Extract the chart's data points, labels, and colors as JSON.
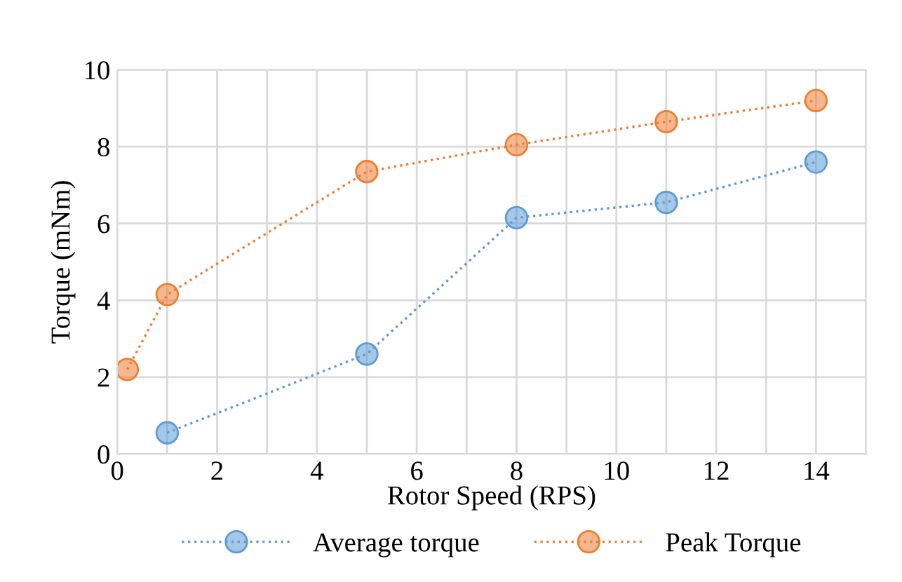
{
  "chart_data": {
    "type": "line",
    "xlabel": "Rotor Speed (RPS)",
    "ylabel": "Torque (mNm)",
    "xlim": [
      0,
      15
    ],
    "ylim": [
      0,
      10
    ],
    "xticks": [
      0,
      {
        "value": 1,
        "label": null
      },
      2,
      {
        "value": 3,
        "label": null
      },
      4,
      {
        "value": 5,
        "label": null
      },
      6,
      {
        "value": 7,
        "label": null
      },
      8,
      {
        "value": 9,
        "label": null
      },
      10,
      {
        "value": 11,
        "label": null
      },
      12,
      {
        "value": 13,
        "label": null
      },
      14,
      {
        "value": 15,
        "label": null
      }
    ],
    "yticks": [
      0,
      2,
      4,
      6,
      8,
      10
    ],
    "series": [
      {
        "name": "Average torque",
        "color": "#5b9bd5",
        "x": [
          1,
          5,
          8,
          11,
          14
        ],
        "values": [
          0.55,
          2.6,
          6.15,
          6.55,
          7.6
        ]
      },
      {
        "name": "Peak Torque",
        "color": "#ed7d31",
        "x": [
          0.2,
          1,
          5,
          8,
          11,
          14
        ],
        "values": [
          2.2,
          4.15,
          7.35,
          8.05,
          8.65,
          9.2
        ]
      }
    ],
    "grid": true,
    "legend": "bottom",
    "marker": "circle",
    "line_style": "dotted"
  }
}
